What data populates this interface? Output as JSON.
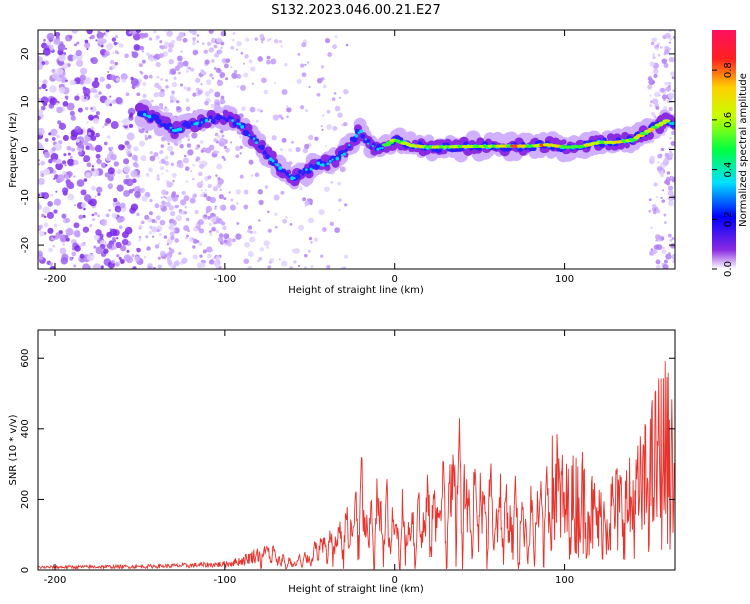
{
  "title": "S132.2023.046.00.21.E27",
  "chart_data": [
    {
      "type": "heatmap",
      "title": "",
      "xlabel": "Height of straight line (km)",
      "ylabel": "Frequency (Hz)",
      "xlim": [
        -210,
        165
      ],
      "ylim": [
        -25,
        25
      ],
      "x_ticks": [
        -200,
        -100,
        0,
        100
      ],
      "y_ticks": [
        20,
        10,
        0,
        -10,
        -20
      ],
      "ridge": {
        "x": [
          -150,
          -140,
          -130,
          -120,
          -110,
          -100,
          -90,
          -80,
          -70,
          -60,
          -55,
          -50,
          -45,
          -40,
          -35,
          -30,
          -25,
          -20,
          -15,
          -10,
          -5,
          0,
          10,
          20,
          40,
          60,
          80,
          90,
          100,
          110,
          120,
          130,
          140,
          150,
          160,
          165
        ],
        "y": [
          8,
          6,
          4,
          5,
          6,
          7,
          5,
          1,
          -3,
          -6,
          -5,
          -4,
          -3,
          -3,
          -2,
          -1,
          2,
          4,
          1,
          0,
          1,
          2,
          0.8,
          0.5,
          0.6,
          0.7,
          0.7,
          1,
          0.5,
          0.6,
          1.5,
          1.5,
          2,
          4,
          6,
          5
        ]
      },
      "colorbar": {
        "label": "Normalized spectral amplitude",
        "range": [
          0,
          1
        ],
        "ticks": [
          "0.0",
          "0.2",
          "0.4",
          "0.6",
          "0.8"
        ]
      }
    },
    {
      "type": "line",
      "title": "",
      "xlabel": "Height of straight line (km)",
      "ylabel": "SNR (10 * v/v)",
      "xlim": [
        -210,
        165
      ],
      "ylim": [
        0,
        680
      ],
      "x_ticks": [
        -200,
        -100,
        0,
        100
      ],
      "y_ticks": [
        0,
        200,
        400,
        600
      ],
      "color": "#e8322c",
      "envelope": {
        "x": [
          -210,
          -150,
          -120,
          -100,
          -90,
          -80,
          -75,
          -70,
          -65,
          -60,
          -50,
          -45,
          -40,
          -35,
          -30,
          -25,
          -20,
          -15,
          -10,
          0,
          10,
          20,
          30,
          35,
          40,
          45,
          50,
          55,
          60,
          70,
          80,
          90,
          95,
          100,
          110,
          120,
          130,
          140,
          150,
          155,
          160,
          165
        ],
        "y": [
          12,
          15,
          20,
          25,
          40,
          70,
          90,
          60,
          40,
          30,
          60,
          120,
          100,
          140,
          180,
          200,
          320,
          170,
          260,
          180,
          200,
          260,
          330,
          420,
          400,
          280,
          340,
          300,
          270,
          240,
          200,
          300,
          400,
          280,
          330,
          220,
          280,
          300,
          420,
          520,
          560,
          400
        ]
      }
    }
  ]
}
